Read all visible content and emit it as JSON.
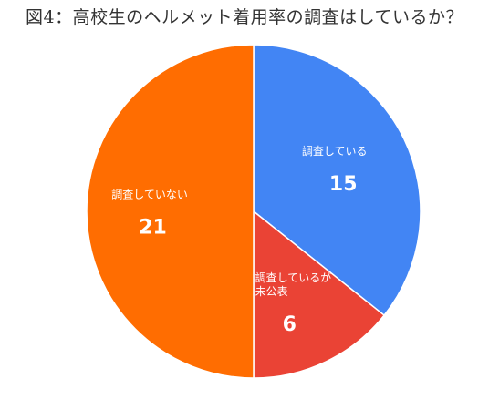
{
  "chart_data": {
    "type": "pie",
    "title": "図4：高校生のヘルメット着用率の調査はしているか？",
    "categories": [
      "調査している",
      "調査しているが未公表",
      "調査していない"
    ],
    "values": [
      15,
      6,
      21
    ],
    "colors": [
      "#4285f4",
      "#ea4335",
      "#ff6d01"
    ],
    "label_lines": [
      [
        "調査している"
      ],
      [
        "調査しているが",
        "未公表"
      ],
      [
        "調査していない"
      ]
    ],
    "start_angle_deg": 0,
    "direction": "clockwise",
    "legend": "none"
  }
}
